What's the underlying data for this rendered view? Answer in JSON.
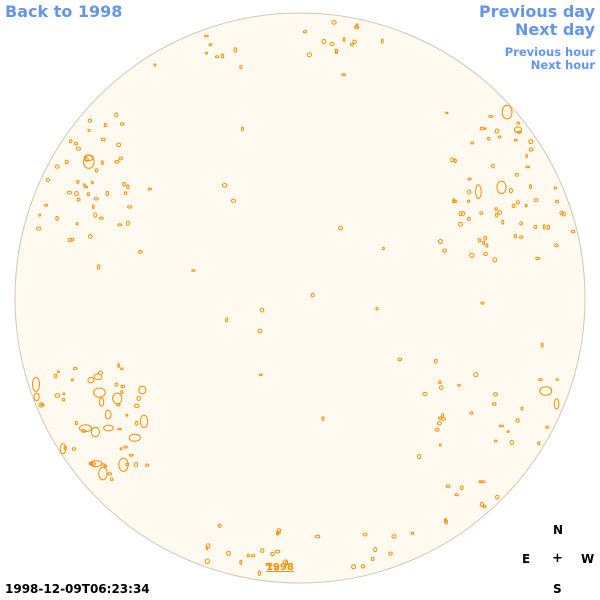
{
  "nav": {
    "back_label": "Back to 1998",
    "prev_day_label": "Previous day",
    "next_day_label": "Next day",
    "prev_hour_label": "Previous hour",
    "next_hour_label": "Next hour"
  },
  "image": {
    "year_link_label": "1998",
    "timestamp": "1998-12-09T06:23:34"
  },
  "compass": {
    "north": "N",
    "east": "E",
    "center": "+",
    "west": "W",
    "south": "S"
  },
  "colors": {
    "link": "#6495ed",
    "contour": "#ff8c00",
    "disk_fill": "#fffaf0",
    "disk_outline": "#d2c8b4"
  }
}
